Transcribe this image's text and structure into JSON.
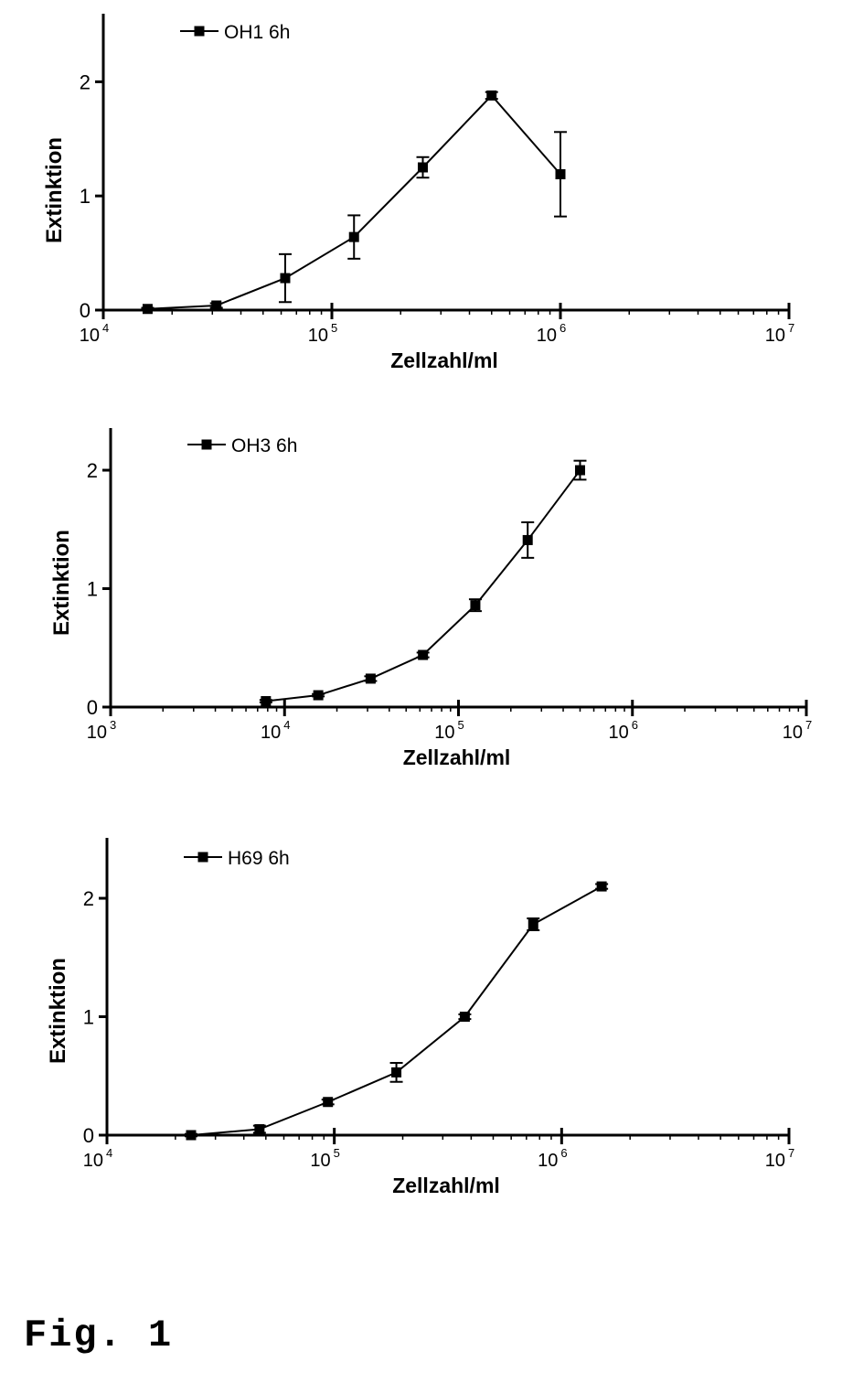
{
  "figure": {
    "caption": "Fig. 1"
  },
  "chart_data": [
    {
      "type": "line",
      "x_scale": "log",
      "xlim": [
        10000,
        10000000
      ],
      "ylim": [
        0,
        2.5
      ],
      "xlabel": "Zellzahl/ml",
      "ylabel": "Extinktion",
      "xticks": [
        {
          "base": "10",
          "exp": "4"
        },
        {
          "base": "10",
          "exp": "5"
        },
        {
          "base": "10",
          "exp": "6"
        },
        {
          "base": "10",
          "exp": "7"
        }
      ],
      "yticks": [
        "0",
        "1",
        "2"
      ],
      "legend_position": "top-left",
      "series": [
        {
          "name": "OH1 6h",
          "x": [
            15625,
            31250,
            62500,
            125000,
            250000,
            500000,
            1000000
          ],
          "y": [
            0.01,
            0.04,
            0.28,
            0.64,
            1.25,
            1.88,
            1.19
          ],
          "err": [
            0.01,
            0.02,
            0.21,
            0.19,
            0.09,
            0.03,
            0.37
          ]
        }
      ]
    },
    {
      "type": "line",
      "x_scale": "log",
      "xlim": [
        1000,
        10000000
      ],
      "ylim": [
        0,
        2.5
      ],
      "xlabel": "Zellzahl/ml",
      "ylabel": "Extinktion",
      "xticks": [
        {
          "base": "10",
          "exp": "3"
        },
        {
          "base": "10",
          "exp": "4"
        },
        {
          "base": "10",
          "exp": "5"
        },
        {
          "base": "10",
          "exp": "6"
        },
        {
          "base": "10",
          "exp": "7"
        }
      ],
      "yticks": [
        "0",
        "1",
        "2"
      ],
      "legend_position": "top-left",
      "series": [
        {
          "name": "OH3 6h",
          "x": [
            7812,
            15625,
            31250,
            62500,
            125000,
            250000,
            500000
          ],
          "y": [
            0.05,
            0.1,
            0.24,
            0.44,
            0.86,
            1.41,
            2.0
          ],
          "err": [
            0.01,
            0.01,
            0.02,
            0.02,
            0.05,
            0.15,
            0.08
          ]
        }
      ]
    },
    {
      "type": "line",
      "x_scale": "log",
      "xlim": [
        10000,
        10000000
      ],
      "ylim": [
        0,
        2.5
      ],
      "xlabel": "Zellzahl/ml",
      "ylabel": "Extinktion",
      "xticks": [
        {
          "base": "10",
          "exp": "4"
        },
        {
          "base": "10",
          "exp": "5"
        },
        {
          "base": "10",
          "exp": "6"
        },
        {
          "base": "10",
          "exp": "7"
        }
      ],
      "yticks": [
        "0",
        "1",
        "2"
      ],
      "legend_position": "top-left",
      "series": [
        {
          "name": "H69 6h",
          "x": [
            23437,
            46875,
            93750,
            187500,
            375000,
            750000,
            1500000
          ],
          "y": [
            0.0,
            0.05,
            0.28,
            0.53,
            1.0,
            1.78,
            2.1
          ],
          "err": [
            0.01,
            0.03,
            0.02,
            0.08,
            0.02,
            0.05,
            0.02
          ]
        }
      ]
    }
  ]
}
